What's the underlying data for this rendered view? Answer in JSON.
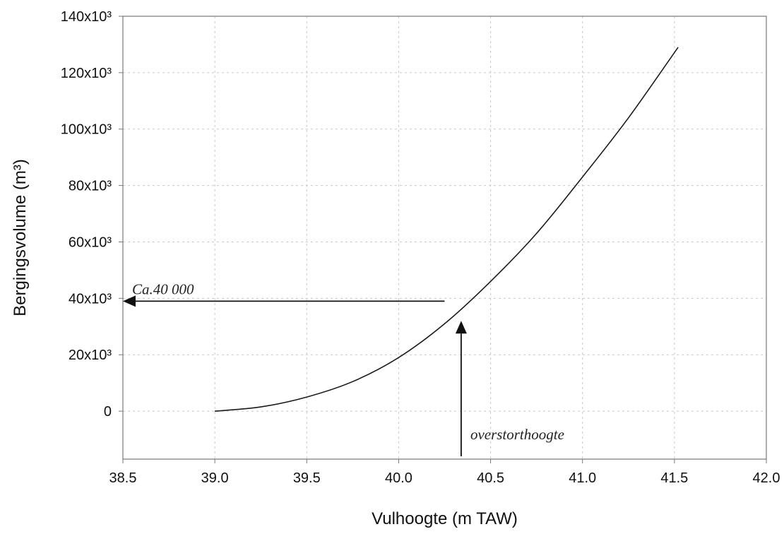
{
  "chart_data": {
    "type": "line",
    "title": "",
    "xlabel": "Vulhoogte (m TAW)",
    "ylabel": "Bergingsvolume (m³)",
    "xlim": [
      38.5,
      42.0
    ],
    "ylim": [
      -17000,
      140000
    ],
    "grid": true,
    "x_ticks": [
      38.5,
      39.0,
      39.5,
      40.0,
      40.5,
      41.0,
      41.5,
      42.0
    ],
    "x_tick_labels": [
      "38.5",
      "39.0",
      "39.5",
      "40.0",
      "40.5",
      "41.0",
      "41.5",
      "42.0"
    ],
    "y_ticks": [
      0,
      20000,
      40000,
      60000,
      80000,
      100000,
      120000,
      140000
    ],
    "y_tick_labels": [
      "0",
      "20x10³",
      "40x10³",
      "60x10³",
      "80x10³",
      "100x10³",
      "120x10³",
      "140x10³"
    ],
    "series": [
      {
        "x": [
          39.0,
          39.25,
          39.5,
          39.75,
          40.0,
          40.25,
          40.5,
          40.75,
          41.0,
          41.25,
          41.52
        ],
        "y": [
          0,
          1500,
          5000,
          10500,
          19000,
          31000,
          46000,
          63000,
          83000,
          104000,
          129000
        ]
      }
    ],
    "annotations": [
      {
        "text": "Ca.40 000",
        "arrow_from": [
          40.25,
          39000
        ],
        "arrow_to": [
          38.5,
          39000
        ],
        "text_at": [
          38.55,
          41500
        ]
      },
      {
        "text": "overstorthoogte",
        "arrow_from": [
          40.34,
          -16000
        ],
        "arrow_to": [
          40.34,
          32000
        ],
        "text_at": [
          40.39,
          -10000
        ]
      }
    ]
  },
  "colors": {
    "line": "#1a1a1a",
    "frame": "#777777",
    "grid": "#c8c8c8",
    "arrow": "#111111"
  }
}
